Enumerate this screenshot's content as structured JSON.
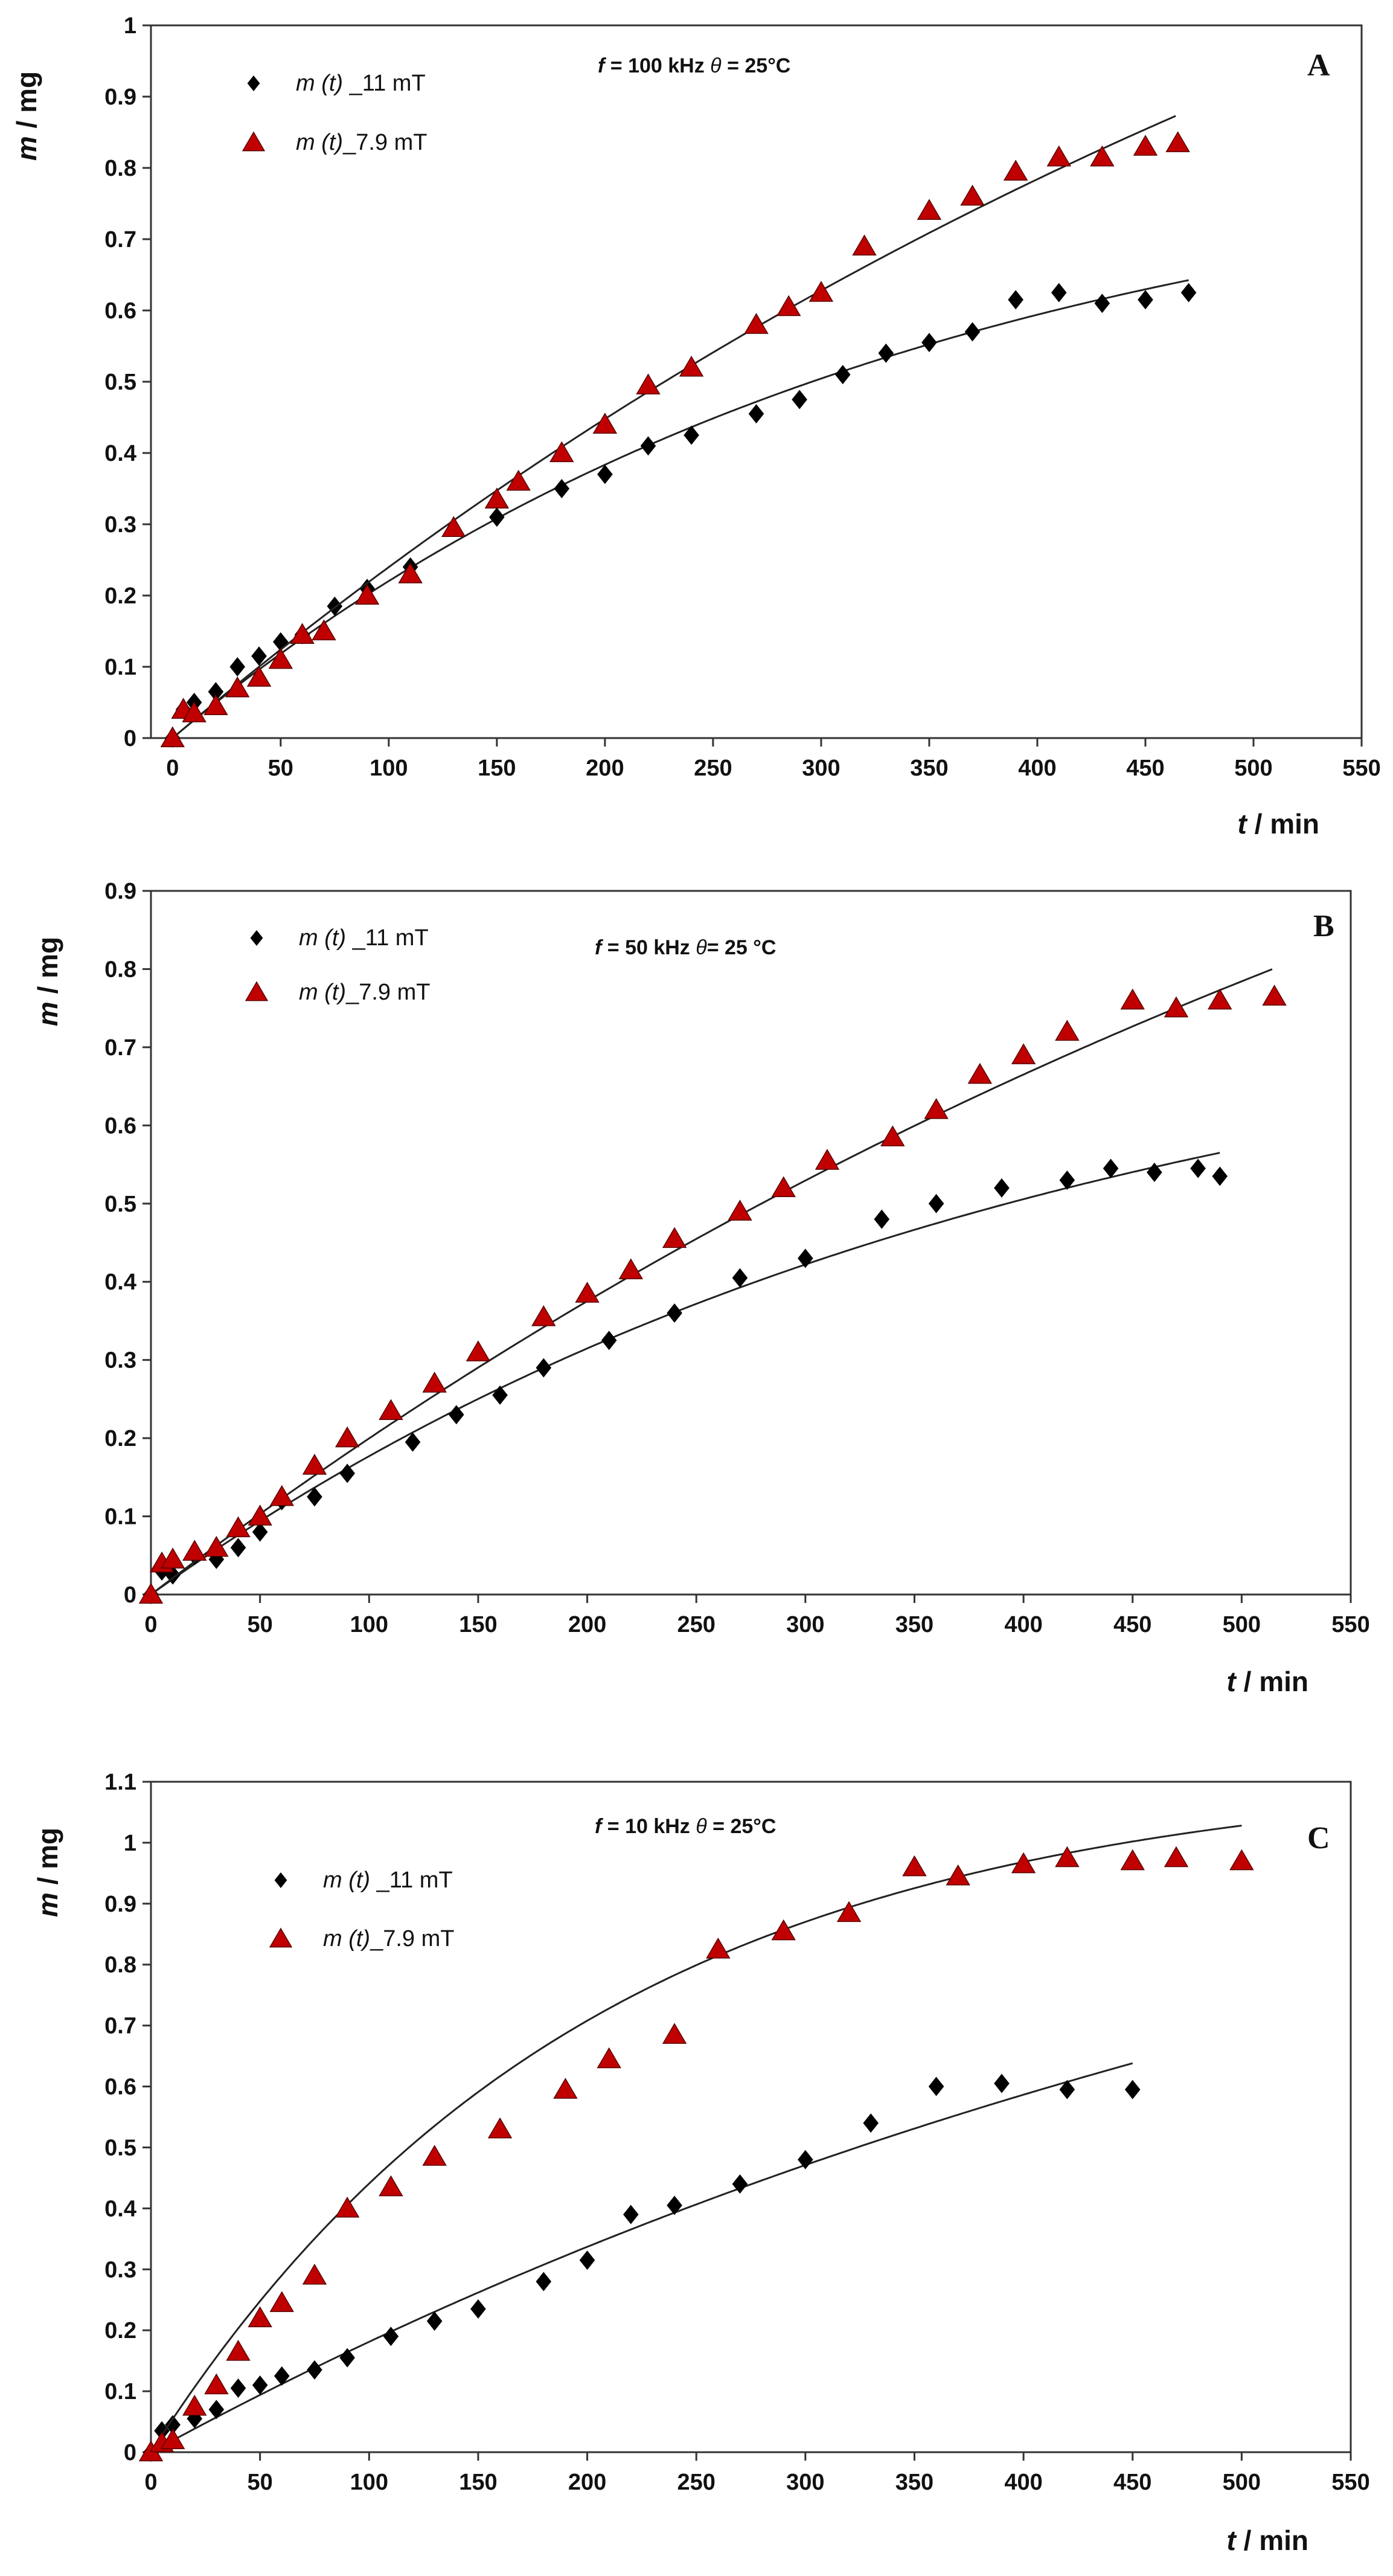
{
  "chart_data": [
    {
      "type": "scatter",
      "panel_label": "A",
      "condition": {
        "f_symbol": "f",
        "f_text": " = 100 kHz  ",
        "theta_symbol": "θ",
        "theta_text": " = 25°C"
      },
      "xlabel": {
        "symbol": "t",
        "unit": " / min"
      },
      "ylabel": {
        "symbol": "m",
        "unit": " / mg"
      },
      "xlim": [
        -10,
        550
      ],
      "ylim": [
        0,
        1
      ],
      "xticks": [
        0,
        50,
        100,
        150,
        200,
        250,
        300,
        350,
        400,
        450,
        500,
        550
      ],
      "yticks": [
        0,
        0.1,
        0.2,
        0.3,
        0.4,
        0.5,
        0.6,
        0.7,
        0.8,
        0.9,
        1
      ],
      "ytick_labels": [
        "0",
        "0.1",
        "0.2",
        "0.3",
        "0.4",
        "0.5",
        "0.6",
        "0.7",
        "0.8",
        "0.9",
        "1"
      ],
      "legend_position": "top-left",
      "series": [
        {
          "name_symbol": "m",
          "name_var": " (t)",
          "name_rest": " _11 mT",
          "marker": "diamond",
          "color": "#000000",
          "x": [
            0,
            5,
            10,
            20,
            30,
            40,
            50,
            60,
            75,
            90,
            110,
            150,
            180,
            200,
            220,
            240,
            270,
            290,
            310,
            330,
            350,
            370,
            390,
            410,
            430,
            450,
            470
          ],
          "y": [
            0,
            0.04,
            0.05,
            0.065,
            0.1,
            0.115,
            0.135,
            0.145,
            0.185,
            0.21,
            0.24,
            0.31,
            0.35,
            0.37,
            0.41,
            0.425,
            0.455,
            0.475,
            0.51,
            0.54,
            0.555,
            0.57,
            0.615,
            0.625,
            0.61,
            0.615,
            0.625
          ],
          "fit": {
            "A": 0.85,
            "k": 0.003,
            "xmax": 470
          }
        },
        {
          "name_symbol": "m",
          "name_var": " (t)",
          "name_rest": "_7.9 mT",
          "marker": "triangle",
          "color": "#c00000",
          "x": [
            0,
            5,
            10,
            20,
            30,
            40,
            50,
            60,
            70,
            90,
            110,
            130,
            150,
            160,
            180,
            200,
            220,
            240,
            270,
            285,
            300,
            320,
            350,
            370,
            390,
            410,
            430,
            450,
            465
          ],
          "y": [
            0,
            0.04,
            0.035,
            0.045,
            0.07,
            0.085,
            0.11,
            0.145,
            0.15,
            0.2,
            0.23,
            0.295,
            0.335,
            0.36,
            0.4,
            0.44,
            0.495,
            0.52,
            0.58,
            0.605,
            0.625,
            0.69,
            0.74,
            0.76,
            0.795,
            0.815,
            0.815,
            0.83,
            0.835
          ],
          "fit": {
            "A": 1.8,
            "k": 0.00143,
            "xmax": 465
          }
        }
      ]
    },
    {
      "type": "scatter",
      "panel_label": "B",
      "condition": {
        "f_symbol": "f",
        "f_text": " = 50 kHz   ",
        "theta_symbol": "θ",
        "theta_text": "= 25 °C"
      },
      "xlabel": {
        "symbol": "t",
        "unit": " / min"
      },
      "ylabel": {
        "symbol": "m",
        "unit": " / mg"
      },
      "xlim": [
        0,
        550
      ],
      "ylim": [
        0,
        0.9
      ],
      "xticks": [
        0,
        50,
        100,
        150,
        200,
        250,
        300,
        350,
        400,
        450,
        500,
        550
      ],
      "yticks": [
        0,
        0.1,
        0.2,
        0.3,
        0.4,
        0.5,
        0.6,
        0.7,
        0.8,
        0.9
      ],
      "ytick_labels": [
        "0",
        "0.1",
        "0.2",
        "0.3",
        "0.4",
        "0.5",
        "0.6",
        "0.7",
        "0.8",
        "0.9"
      ],
      "legend_position": "top-left",
      "series": [
        {
          "name_symbol": "m",
          "name_var": " (t)",
          "name_rest": " _11 mT",
          "marker": "diamond",
          "color": "#000000",
          "x": [
            0,
            5,
            10,
            20,
            30,
            40,
            50,
            60,
            75,
            90,
            120,
            140,
            160,
            180,
            210,
            240,
            270,
            300,
            335,
            360,
            390,
            420,
            440,
            460,
            480,
            490
          ],
          "y": [
            0,
            0.03,
            0.025,
            0.05,
            0.045,
            0.06,
            0.08,
            0.12,
            0.125,
            0.155,
            0.195,
            0.23,
            0.255,
            0.29,
            0.325,
            0.36,
            0.405,
            0.43,
            0.48,
            0.5,
            0.52,
            0.53,
            0.545,
            0.54,
            0.545,
            0.535
          ],
          "fit": {
            "A": 0.8,
            "k": 0.0025,
            "xmax": 490
          }
        },
        {
          "name_symbol": "m",
          "name_var": " (t)",
          "name_rest": "_7.9 mT",
          "marker": "triangle",
          "color": "#c00000",
          "x": [
            0,
            5,
            10,
            20,
            30,
            40,
            50,
            60,
            75,
            90,
            110,
            130,
            150,
            180,
            200,
            220,
            240,
            270,
            290,
            310,
            340,
            360,
            380,
            400,
            420,
            450,
            470,
            490,
            515
          ],
          "y": [
            0,
            0.04,
            0.045,
            0.055,
            0.06,
            0.085,
            0.1,
            0.125,
            0.165,
            0.2,
            0.235,
            0.27,
            0.31,
            0.355,
            0.385,
            0.415,
            0.455,
            0.49,
            0.52,
            0.555,
            0.585,
            0.62,
            0.665,
            0.69,
            0.72,
            0.76,
            0.75,
            0.76,
            0.765
          ],
          "fit": {
            "A": 1.65,
            "k": 0.00129,
            "xmax": 515
          }
        }
      ]
    },
    {
      "type": "scatter",
      "panel_label": "C",
      "condition": {
        "f_symbol": "f",
        "f_text": " = 10 kHz   ",
        "theta_symbol": "θ",
        "theta_text": " = 25°C"
      },
      "xlabel": {
        "symbol": "t",
        "unit": " / min"
      },
      "ylabel": {
        "symbol": "m",
        "unit": " / mg"
      },
      "xlim": [
        0,
        550
      ],
      "ylim": [
        0,
        1.1
      ],
      "xticks": [
        0,
        50,
        100,
        150,
        200,
        250,
        300,
        350,
        400,
        450,
        500,
        550
      ],
      "yticks": [
        0,
        0.1,
        0.2,
        0.3,
        0.4,
        0.5,
        0.6,
        0.7,
        0.8,
        0.9,
        1,
        1.1
      ],
      "ytick_labels": [
        "0",
        "0.1",
        "0.2",
        "0.3",
        "0.4",
        "0.5",
        "0.6",
        "0.7",
        "0.8",
        "0.9",
        "1",
        "1.1"
      ],
      "legend_position": "top-left",
      "series": [
        {
          "name_symbol": "m",
          "name_var": " (t)",
          "name_rest": " _11 mT",
          "marker": "diamond",
          "color": "#000000",
          "x": [
            0,
            5,
            10,
            20,
            30,
            40,
            50,
            60,
            75,
            90,
            110,
            130,
            150,
            180,
            200,
            220,
            240,
            270,
            300,
            330,
            360,
            390,
            420,
            450
          ],
          "y": [
            0,
            0.035,
            0.045,
            0.055,
            0.07,
            0.105,
            0.11,
            0.125,
            0.135,
            0.155,
            0.19,
            0.215,
            0.235,
            0.28,
            0.315,
            0.39,
            0.405,
            0.44,
            0.48,
            0.54,
            0.6,
            0.605,
            0.595,
            0.595
          ],
          "fit": {
            "A": 1.3,
            "k": 0.0015,
            "xmax": 450
          }
        },
        {
          "name_symbol": "m",
          "name_var": " (t)",
          "name_rest": "_7.9 mT",
          "marker": "triangle",
          "color": "#c00000",
          "x": [
            0,
            5,
            10,
            20,
            30,
            40,
            50,
            60,
            75,
            90,
            110,
            130,
            160,
            190,
            210,
            240,
            260,
            290,
            320,
            350,
            370,
            400,
            420,
            450,
            470,
            500
          ],
          "y": [
            0,
            0.015,
            0.02,
            0.075,
            0.11,
            0.165,
            0.22,
            0.245,
            0.29,
            0.4,
            0.435,
            0.485,
            0.53,
            0.595,
            0.645,
            0.685,
            0.825,
            0.855,
            0.885,
            0.96,
            0.945,
            0.965,
            0.975,
            0.97,
            0.975,
            0.97
          ],
          "fit": {
            "A": 1.12,
            "k": 0.005,
            "xmax": 500
          }
        }
      ]
    }
  ]
}
